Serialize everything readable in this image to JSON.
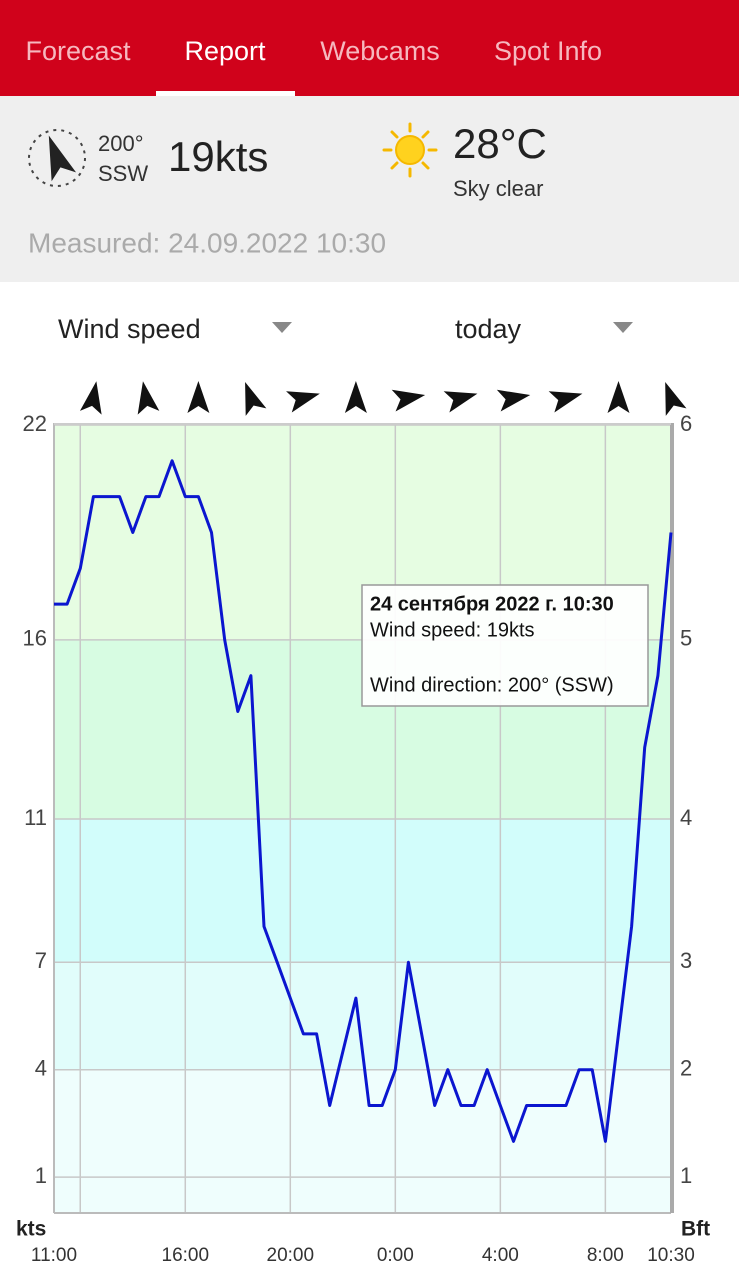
{
  "tabs": [
    "Forecast",
    "Report",
    "Webcams",
    "Spot Info"
  ],
  "current": {
    "direction_deg": "200°",
    "direction": "SSW",
    "speed": "19kts",
    "temperature": "28°C",
    "sky": "Sky clear",
    "measured": "Measured: 24.09.2022 10:30"
  },
  "selectors": {
    "parameter": "Wind speed",
    "period": "today"
  },
  "chart_data": {
    "type": "line",
    "x": [
      11,
      11.5,
      12,
      12.5,
      13,
      13.5,
      14,
      14.5,
      15,
      15.5,
      16,
      16.5,
      17,
      17.5,
      18,
      18.5,
      19,
      19.5,
      20,
      20.5,
      21,
      21.5,
      22,
      22.5,
      23,
      23.5,
      24,
      24.5,
      25,
      25.5,
      26,
      26.5,
      27,
      27.5,
      28,
      28.5,
      29,
      29.5,
      30,
      30.5,
      31,
      31.5,
      32,
      32.5,
      33,
      33.5,
      34,
      34.5
    ],
    "series": [
      {
        "name": "Wind speed",
        "color": "#0b16cf",
        "values": [
          17,
          17,
          18,
          20,
          20,
          20,
          19,
          20,
          20,
          21,
          20,
          20,
          19,
          16,
          14,
          15,
          8,
          7,
          6,
          5,
          5,
          3,
          4.5,
          6,
          3,
          3,
          4,
          7,
          5,
          3,
          4,
          3,
          3,
          4,
          3,
          2,
          3,
          3,
          3,
          3,
          4,
          4,
          2,
          5,
          8,
          13,
          15,
          19
        ]
      }
    ],
    "directions": {
      "x": [
        12.5,
        14.5,
        16.5,
        18.5,
        20.5,
        22.5,
        24.5,
        26.5,
        28.5,
        30.5,
        32.5,
        34.5
      ],
      "values": [
        170,
        190,
        180,
        200,
        105,
        180,
        100,
        105,
        100,
        105,
        180,
        200
      ]
    },
    "xlim": [
      11,
      34.5
    ],
    "xticks": [
      {
        "value": 11,
        "label": "11:00"
      },
      {
        "value": 16,
        "label": "16:00"
      },
      {
        "value": 20,
        "label": "20:00"
      },
      {
        "value": 24,
        "label": "0:00"
      },
      {
        "value": 28,
        "label": "4:00"
      },
      {
        "value": 32,
        "label": "8:00"
      },
      {
        "value": 34.5,
        "label": "10:30"
      }
    ],
    "xgrid": [
      12,
      16,
      20,
      24,
      28,
      32
    ],
    "ylim": [
      0,
      22
    ],
    "yticks": [
      1,
      4,
      7,
      11,
      16,
      22
    ],
    "y2ticks": [
      1,
      2,
      3,
      4,
      5,
      6
    ],
    "ylabel": "kts",
    "y2label": "Bft",
    "band_colors": [
      "#effefd",
      "#e1fdfb",
      "#d2fdfb",
      "#d7fce2",
      "#e6fde2"
    ],
    "tooltip": {
      "title": "24 сентября 2022 г. 10:30",
      "lines": [
        "Wind speed: 19kts",
        "Wind direction: 200° (SSW)"
      ]
    }
  }
}
